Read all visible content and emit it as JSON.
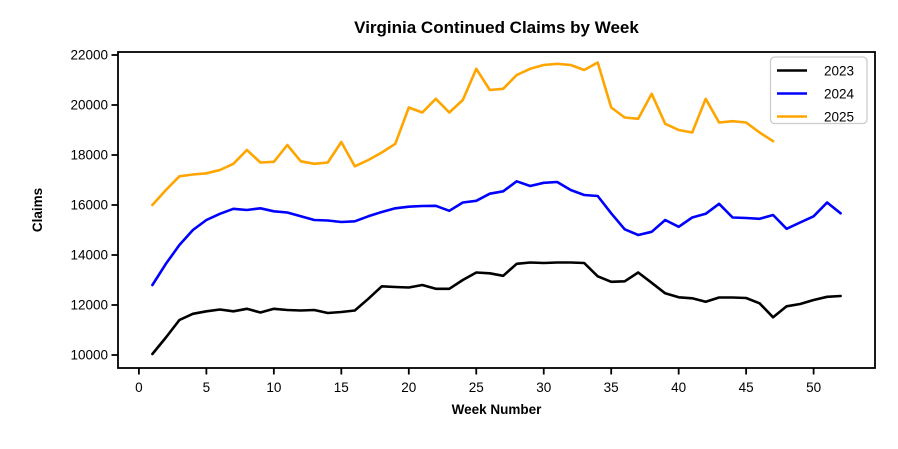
{
  "chart_data": {
    "type": "line",
    "title": "Virginia Continued Claims by Week",
    "xlabel": "Week Number",
    "ylabel": "Claims",
    "x": [
      1,
      2,
      3,
      4,
      5,
      6,
      7,
      8,
      9,
      10,
      11,
      12,
      13,
      14,
      15,
      16,
      17,
      18,
      19,
      20,
      21,
      22,
      23,
      24,
      25,
      26,
      27,
      28,
      29,
      30,
      31,
      32,
      33,
      34,
      35,
      36,
      37,
      38,
      39,
      40,
      41,
      42,
      43,
      44,
      45,
      46,
      47,
      48,
      49,
      50,
      51,
      52
    ],
    "series": [
      {
        "name": "2023",
        "color": "#000000",
        "values": [
          10040,
          10700,
          11400,
          11650,
          11750,
          11820,
          11750,
          11850,
          11700,
          11850,
          11800,
          11780,
          11800,
          11680,
          11720,
          11780,
          12250,
          12750,
          12720,
          12700,
          12800,
          12650,
          12650,
          13000,
          13300,
          13270,
          13170,
          13650,
          13700,
          13680,
          13700,
          13700,
          13680,
          13150,
          12930,
          12950,
          13300,
          12890,
          12470,
          12310,
          12270,
          12130,
          12300,
          12300,
          12280,
          12070,
          11510,
          11950,
          12040,
          12200,
          12330,
          12360
        ]
      },
      {
        "name": "2024",
        "color": "#0000ff",
        "values": [
          12800,
          13650,
          14400,
          15000,
          15400,
          15650,
          15850,
          15800,
          15870,
          15750,
          15700,
          15550,
          15400,
          15380,
          15320,
          15350,
          15550,
          15720,
          15870,
          15930,
          15960,
          15970,
          15770,
          16100,
          16170,
          16450,
          16550,
          16950,
          16760,
          16890,
          16920,
          16600,
          16400,
          16360,
          15670,
          15030,
          14800,
          14930,
          15400,
          15130,
          15500,
          15650,
          16050,
          15500,
          15480,
          15450,
          15600,
          15050,
          15300,
          15550,
          16100,
          15670
        ]
      },
      {
        "name": "2025",
        "color": "#ffa500",
        "values": [
          16000,
          16600,
          17150,
          17220,
          17270,
          17400,
          17650,
          18200,
          17700,
          17730,
          18400,
          17750,
          17650,
          17700,
          18520,
          17550,
          17800,
          18100,
          18450,
          19900,
          19700,
          20250,
          19700,
          20200,
          21450,
          20600,
          20650,
          21200,
          21450,
          21600,
          21650,
          21600,
          21400,
          21700,
          19900,
          19500,
          19450,
          20450,
          19250,
          19000,
          18900,
          20250,
          19300,
          19350,
          19300,
          18900,
          18550
        ]
      }
    ],
    "xticks": [
      0,
      5,
      10,
      15,
      20,
      25,
      30,
      35,
      40,
      45,
      50
    ],
    "yticks": [
      10000,
      12000,
      14000,
      16000,
      18000,
      20000,
      22000
    ],
    "xlim": [
      -1.55,
      54.55
    ],
    "ylim": [
      9480,
      22120
    ],
    "grid": false,
    "legend_position": "upper right"
  }
}
